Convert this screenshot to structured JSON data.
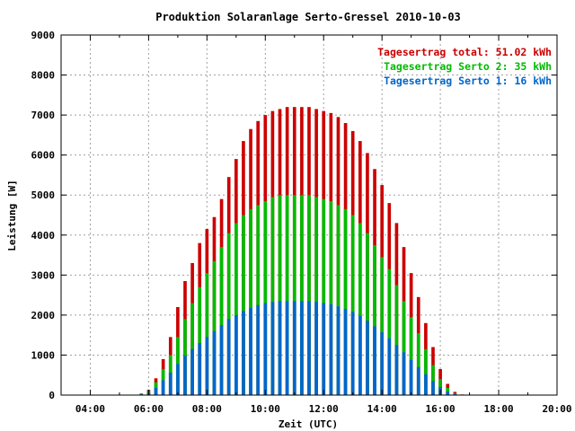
{
  "chart_data": {
    "type": "bar",
    "stacked_overlay": true,
    "title": "Produktion Solaranlage Serto-Gressel 2010-10-03",
    "xlabel": "Zeit (UTC)",
    "ylabel": "Leistung [W]",
    "x_unit": "hour",
    "xlim": [
      3,
      20
    ],
    "ylim": [
      0,
      9000
    ],
    "x_ticks": [
      4,
      6,
      8,
      10,
      12,
      14,
      16,
      18,
      20
    ],
    "x_tick_labels": [
      "04:00",
      "06:00",
      "08:00",
      "10:00",
      "12:00",
      "14:00",
      "16:00",
      "18:00",
      "20:00"
    ],
    "y_ticks": [
      0,
      1000,
      2000,
      3000,
      4000,
      5000,
      6000,
      7000,
      8000,
      9000
    ],
    "y_tick_labels": [
      "0",
      "1000",
      "2000",
      "3000",
      "4000",
      "5000",
      "6000",
      "7000",
      "8000",
      "9000"
    ],
    "grid": true,
    "legend_position": "top-right",
    "x": [
      5.5,
      5.75,
      6,
      6.25,
      6.5,
      6.75,
      7,
      7.25,
      7.5,
      7.75,
      8,
      8.25,
      8.5,
      8.75,
      9,
      9.25,
      9.5,
      9.75,
      10,
      10.25,
      10.5,
      10.75,
      11,
      11.25,
      11.5,
      11.75,
      12,
      12.25,
      12.5,
      12.75,
      13,
      13.25,
      13.5,
      13.75,
      14,
      14.25,
      14.5,
      14.75,
      15,
      15.25,
      15.5,
      15.75,
      16,
      16.25,
      16.5,
      16.75,
      17
    ],
    "series": [
      {
        "name": "Tagesertrag total: 51.02 kWh",
        "color": "#cc0000",
        "values": [
          0,
          40,
          130,
          420,
          900,
          1450,
          2200,
          2850,
          3300,
          3800,
          4150,
          4450,
          4900,
          5450,
          5900,
          6350,
          6650,
          6850,
          7000,
          7100,
          7150,
          7200,
          7200,
          7200,
          7200,
          7150,
          7100,
          7050,
          6950,
          6800,
          6600,
          6350,
          6050,
          5650,
          5250,
          4800,
          4300,
          3700,
          3050,
          2450,
          1800,
          1200,
          650,
          280,
          80,
          15,
          0
        ]
      },
      {
        "name": "Tagesertrag Serto 2: 35 kWh",
        "color": "#00bb00",
        "values": [
          0,
          30,
          100,
          320,
          650,
          1000,
          1450,
          1900,
          2300,
          2700,
          3050,
          3350,
          3700,
          4050,
          4300,
          4500,
          4650,
          4750,
          4850,
          4950,
          5000,
          5000,
          5000,
          5000,
          5000,
          4950,
          4900,
          4850,
          4750,
          4650,
          4500,
          4300,
          4050,
          3750,
          3450,
          3150,
          2750,
          2350,
          1950,
          1550,
          1150,
          750,
          400,
          180,
          50,
          10,
          0
        ]
      },
      {
        "name": "Tagesertrag Serto 1: 16 kWh",
        "color": "#0066cc",
        "values": [
          0,
          20,
          60,
          180,
          370,
          560,
          780,
          980,
          1150,
          1300,
          1450,
          1600,
          1750,
          1900,
          2000,
          2100,
          2180,
          2250,
          2300,
          2330,
          2350,
          2350,
          2350,
          2350,
          2350,
          2330,
          2300,
          2270,
          2220,
          2150,
          2080,
          1980,
          1860,
          1720,
          1570,
          1420,
          1250,
          1070,
          880,
          700,
          520,
          350,
          200,
          90,
          30,
          5,
          0
        ]
      }
    ]
  }
}
